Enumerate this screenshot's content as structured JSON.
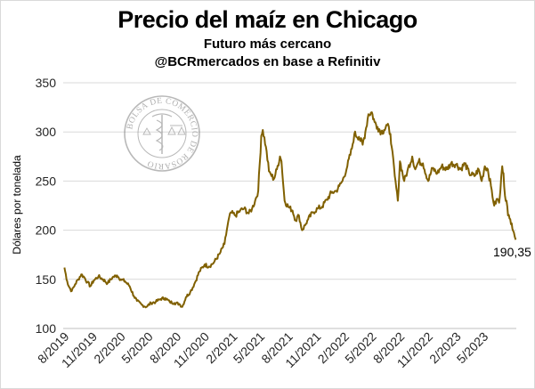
{
  "chart_data": {
    "type": "line",
    "title": "Precio del maíz en Chicago",
    "subtitle": "Futuro más cercano",
    "source": "@BCRmercados en base a Refinitiv",
    "xlabel": "",
    "ylabel": "Dólares por tonelada",
    "ylim": [
      100,
      350
    ],
    "yticks": [
      100,
      150,
      200,
      250,
      300,
      350
    ],
    "grid": true,
    "legend": "none",
    "xticks": [
      "8/2019",
      "11/2019",
      "2/2020",
      "5/2020",
      "8/2020",
      "11/2020",
      "2/2021",
      "5/2021",
      "8/2021",
      "11/2021",
      "2/2022",
      "5/2022",
      "8/2022",
      "11/2022",
      "2/2023",
      "5/2023"
    ],
    "annotation": "190,35",
    "line_color": "#806000",
    "logo_text": "BOLSA DE COMERCIO DE ROSARIO",
    "series": [
      {
        "name": "",
        "x": [
          "2019-08-01",
          "2019-08-10",
          "2019-08-15",
          "2019-08-25",
          "2019-09-05",
          "2019-09-15",
          "2019-09-25",
          "2019-10-05",
          "2019-10-15",
          "2019-10-25",
          "2019-11-05",
          "2019-11-20",
          "2019-12-05",
          "2019-12-20",
          "2020-01-05",
          "2020-01-20",
          "2020-02-01",
          "2020-02-15",
          "2020-03-01",
          "2020-03-15",
          "2020-03-25",
          "2020-04-10",
          "2020-04-25",
          "2020-05-10",
          "2020-05-25",
          "2020-06-10",
          "2020-06-25",
          "2020-07-10",
          "2020-07-25",
          "2020-08-10",
          "2020-08-20",
          "2020-09-01",
          "2020-09-15",
          "2020-10-01",
          "2020-10-15",
          "2020-11-01",
          "2020-11-15",
          "2020-12-01",
          "2020-12-20",
          "2021-01-05",
          "2021-01-15",
          "2021-01-25",
          "2021-02-10",
          "2021-02-25",
          "2021-03-10",
          "2021-03-25",
          "2021-04-05",
          "2021-04-15",
          "2021-04-25",
          "2021-05-05",
          "2021-05-10",
          "2021-05-20",
          "2021-05-30",
          "2021-06-05",
          "2021-06-15",
          "2021-06-25",
          "2021-07-05",
          "2021-07-10",
          "2021-07-20",
          "2021-08-01",
          "2021-08-15",
          "2021-08-25",
          "2021-09-05",
          "2021-09-15",
          "2021-09-25",
          "2021-10-05",
          "2021-10-20",
          "2021-11-05",
          "2021-11-20",
          "2021-12-05",
          "2021-12-20",
          "2022-01-05",
          "2022-01-15",
          "2022-01-25",
          "2022-02-10",
          "2022-02-25",
          "2022-03-05",
          "2022-03-20",
          "2022-04-01",
          "2022-04-10",
          "2022-04-20",
          "2022-05-01",
          "2022-05-10",
          "2022-05-20",
          "2022-06-01",
          "2022-06-10",
          "2022-06-20",
          "2022-07-01",
          "2022-07-05",
          "2022-07-15",
          "2022-07-25",
          "2022-08-01",
          "2022-08-15",
          "2022-08-25",
          "2022-09-10",
          "2022-09-20",
          "2022-10-01",
          "2022-10-15",
          "2022-11-01",
          "2022-11-15",
          "2022-12-01",
          "2022-12-15",
          "2023-01-01",
          "2023-01-15",
          "2023-02-01",
          "2023-02-15",
          "2023-03-01",
          "2023-03-15",
          "2023-04-01",
          "2023-04-15",
          "2023-04-25",
          "2023-05-05",
          "2023-05-15",
          "2023-05-25",
          "2023-06-05",
          "2023-06-15",
          "2023-06-21",
          "2023-06-25",
          "2023-07-01",
          "2023-07-05",
          "2023-07-10",
          "2023-07-15",
          "2023-07-20",
          "2023-07-25",
          "2023-08-01",
          "2023-08-08",
          "2023-08-14"
        ],
        "y": [
          162,
          148,
          143,
          138,
          145,
          150,
          155,
          152,
          147,
          143,
          149,
          153,
          150,
          146,
          152,
          154,
          150,
          148,
          143,
          133,
          128,
          124,
          122,
          126,
          127,
          130,
          131,
          127,
          126,
          125,
          122,
          132,
          137,
          147,
          158,
          165,
          163,
          167,
          176,
          186,
          205,
          218,
          215,
          220,
          222,
          217,
          222,
          230,
          240,
          296,
          302,
          285,
          260,
          257,
          252,
          262,
          275,
          270,
          230,
          224,
          220,
          210,
          215,
          200,
          205,
          211,
          218,
          222,
          224,
          231,
          238,
          240,
          245,
          250,
          265,
          283,
          298,
          295,
          287,
          300,
          318,
          320,
          310,
          305,
          300,
          302,
          307,
          298,
          285,
          255,
          230,
          270,
          250,
          260,
          275,
          262,
          270,
          268,
          250,
          263,
          258,
          265,
          262,
          268,
          267,
          262,
          268,
          258,
          255,
          262,
          250,
          265,
          262,
          245,
          225,
          232,
          228,
          240,
          265,
          258,
          235,
          230,
          215,
          212,
          207,
          198,
          190.35
        ]
      }
    ]
  }
}
